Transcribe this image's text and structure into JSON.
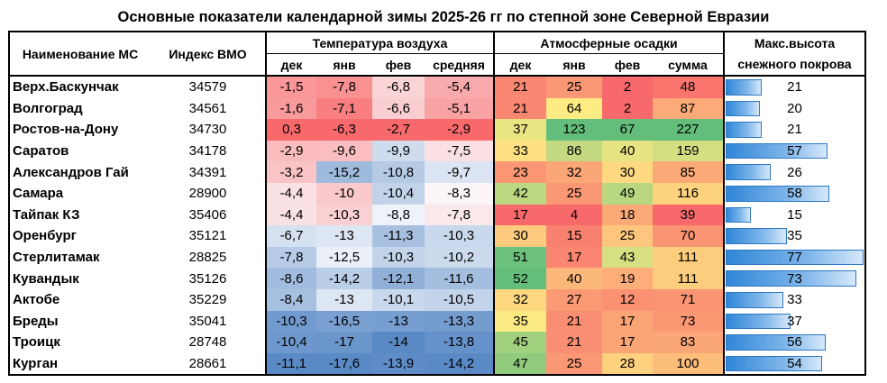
{
  "title": "Основные показатели календарной зимы 2025-26 гг по степной зоне Северной Евразии",
  "headers": {
    "name": "Наименование МС",
    "index": "Индекс ВМО",
    "temp_group": "Температура воздуха",
    "precip_group": "Атмосферные осадки",
    "snow_line1": "Макс.высота",
    "snow_line2": "снежного покрова",
    "temp_cols": [
      "дек",
      "янв",
      "фев",
      "средняя"
    ],
    "precip_cols": [
      "дек",
      "янв",
      "фев",
      "сумма"
    ]
  },
  "rows": [
    {
      "name": "Верх.Баскунчак",
      "index": "34579",
      "t": [
        "-1,5",
        "-7,8",
        "-6,8",
        "-5,4"
      ],
      "p": [
        "21",
        "25",
        "2",
        "48"
      ],
      "snow": "21"
    },
    {
      "name": "Волгоград",
      "index": "34561",
      "t": [
        "-1,6",
        "-7,1",
        "-6,6",
        "-5,1"
      ],
      "p": [
        "21",
        "64",
        "2",
        "87"
      ],
      "snow": "20"
    },
    {
      "name": "Ростов-на-Дону",
      "index": "34730",
      "t": [
        "0,3",
        "-6,3",
        "-2,7",
        "-2,9"
      ],
      "p": [
        "37",
        "123",
        "67",
        "227"
      ],
      "snow": "21"
    },
    {
      "name": "Саратов",
      "index": "34178",
      "t": [
        "-2,9",
        "-9,6",
        "-9,9",
        "-7,5"
      ],
      "p": [
        "33",
        "86",
        "40",
        "159"
      ],
      "snow": "57"
    },
    {
      "name": "Александров Гай",
      "index": "34391",
      "t": [
        "-3,2",
        "-15,2",
        "-10,8",
        "-9,7"
      ],
      "p": [
        "23",
        "32",
        "30",
        "85"
      ],
      "snow": "26"
    },
    {
      "name": "Самара",
      "index": "28900",
      "t": [
        "-4,4",
        "-10",
        "-10,4",
        "-8,3"
      ],
      "p": [
        "42",
        "25",
        "49",
        "116"
      ],
      "snow": "58"
    },
    {
      "name": "Тайпак КЗ",
      "index": "35406",
      "t": [
        "-4,4",
        "-10,3",
        "-8,8",
        "-7,8"
      ],
      "p": [
        "17",
        "4",
        "18",
        "39"
      ],
      "snow": "15"
    },
    {
      "name": "Оренбург",
      "index": "35121",
      "t": [
        "-6,7",
        "-13",
        "-11,3",
        "-10,3"
      ],
      "p": [
        "30",
        "15",
        "25",
        "70"
      ],
      "snow": "35"
    },
    {
      "name": "Стерлитамак",
      "index": "28825",
      "t": [
        "-7,8",
        "-12,5",
        "-10,3",
        "-10,2"
      ],
      "p": [
        "51",
        "17",
        "43",
        "111"
      ],
      "snow": "77"
    },
    {
      "name": "Кувандык",
      "index": "35126",
      "t": [
        "-8,6",
        "-14,2",
        "-12,1",
        "-11,6"
      ],
      "p": [
        "52",
        "40",
        "19",
        "111"
      ],
      "snow": "73"
    },
    {
      "name": "Актобе",
      "index": "35229",
      "t": [
        "-8,4",
        "-13",
        "-10,1",
        "-10,5"
      ],
      "p": [
        "32",
        "27",
        "12",
        "71"
      ],
      "snow": "33"
    },
    {
      "name": "Бреды",
      "index": "35041",
      "t": [
        "-10,3",
        "-16,5",
        "-13",
        "-13,3"
      ],
      "p": [
        "35",
        "21",
        "17",
        "73"
      ],
      "snow": "37"
    },
    {
      "name": "Троицк",
      "index": "28748",
      "t": [
        "-10,4",
        "-17",
        "-14",
        "-13,8"
      ],
      "p": [
        "45",
        "21",
        "17",
        "83"
      ],
      "snow": "56"
    },
    {
      "name": "Курган",
      "index": "28661",
      "t": [
        "-11,1",
        "-17,6",
        "-13,9",
        "-14,2"
      ],
      "p": [
        "47",
        "25",
        "28",
        "100"
      ],
      "snow": "54"
    }
  ]
}
